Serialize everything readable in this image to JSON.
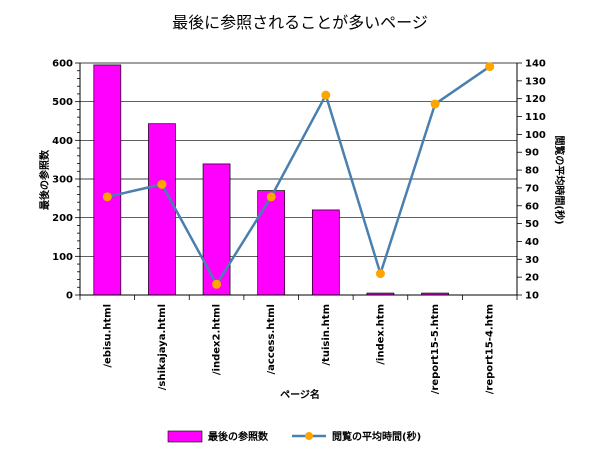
{
  "chart_data": {
    "type": "bar+line",
    "title": "最後に参照されることが多いページ",
    "xlabel": "ページ名",
    "ylabel_left": "最後の参照数",
    "ylabel_right": "閲覧の平均時間(秒)",
    "categories": [
      "/ebisu.html",
      "/shikajaya.html",
      "/index2.html",
      "/access.html",
      "/tuisin.htm",
      "/index.htm",
      "/report15-5.htm",
      "/report15-4.htm"
    ],
    "left_axis": {
      "min": 0,
      "max": 600,
      "step": 100,
      "minor_step": 20
    },
    "right_axis": {
      "min": 10,
      "max": 140,
      "step": 10
    },
    "series": [
      {
        "name": "最後の参照数",
        "kind": "bar",
        "axis": "left",
        "color": "#ff00ff",
        "values": [
          595,
          443,
          339,
          270,
          220,
          5,
          5,
          0
        ]
      },
      {
        "name": "閲覧の平均時間(秒)",
        "kind": "line",
        "axis": "right",
        "color": "#4a80b0",
        "marker_color": "#ffa500",
        "values": [
          65,
          72,
          16,
          65,
          122,
          22,
          117,
          138
        ]
      }
    ],
    "grid": "horizontal",
    "legend_position": "bottom"
  }
}
